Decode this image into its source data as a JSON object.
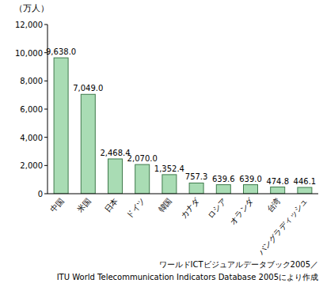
{
  "chart_data": {
    "type": "bar",
    "ylabel": "（万人）",
    "categories": [
      "中国",
      "米国",
      "日本",
      "ドイツ",
      "韓国",
      "カナダ",
      "ロシア",
      "オランダ",
      "台湾",
      "バングラディッシュ"
    ],
    "values": [
      9638.0,
      7049.0,
      2468.4,
      2070.0,
      1352.4,
      757.3,
      639.6,
      639.0,
      474.8,
      446.1
    ],
    "value_labels": [
      "9,638.0",
      "7,049.0",
      "2,468.4",
      "2,070.0",
      "1,352.4",
      "757.3",
      "639.6",
      "639.0",
      "474.8",
      "446.1"
    ],
    "data_labels": true,
    "color": "#a9dcb4",
    "ylim": [
      0,
      12000
    ],
    "yticks": [
      0,
      {
        "value": 2000,
        "label": "2,000"
      },
      {
        "value": 4000,
        "label": "4,000"
      },
      {
        "value": 6000,
        "label": "6,000"
      },
      {
        "value": 8000,
        "label": "8,000"
      },
      {
        "value": 10000,
        "label": "10,000"
      },
      {
        "value": 12000,
        "label": "12,000"
      }
    ],
    "grid": false,
    "annotations": [
      "ワールドICTビジュアルデータブック2005／",
      "ITU World Telecommunication Indicators Database 2005により作成"
    ]
  }
}
